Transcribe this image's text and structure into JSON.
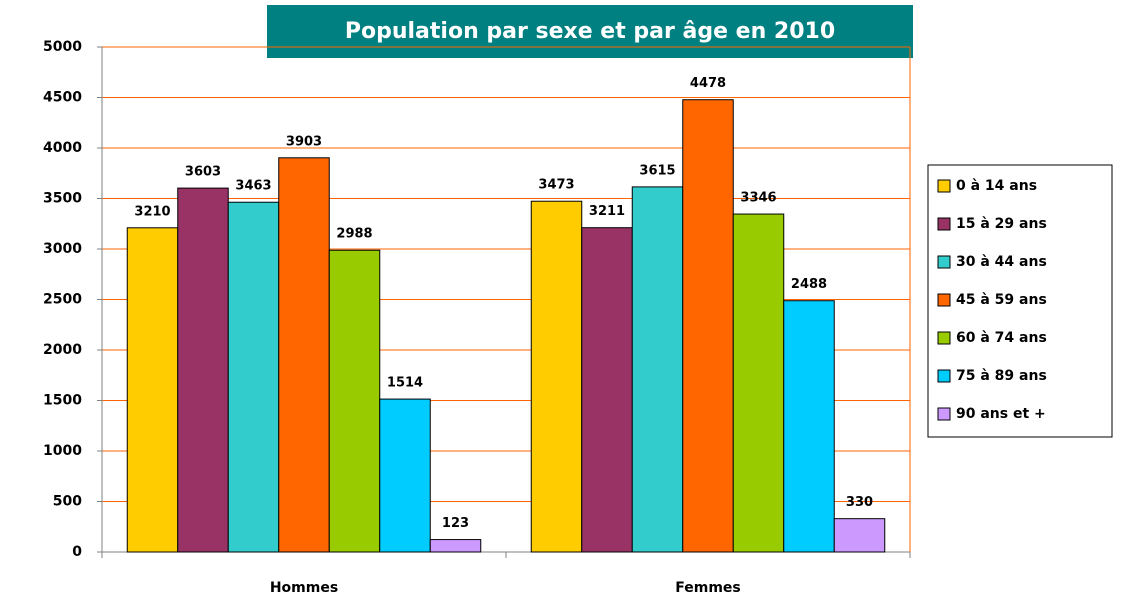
{
  "chart_data": {
    "type": "bar",
    "title": "Population par sexe et par âge en 2010",
    "categories": [
      "Hommes",
      "Femmes"
    ],
    "series": [
      {
        "name": "0 à 14 ans",
        "color": "#ffcc00",
        "values": [
          3210,
          3473
        ]
      },
      {
        "name": "15 à 29 ans",
        "color": "#993366",
        "values": [
          3603,
          3211
        ]
      },
      {
        "name": "30 à 44 ans",
        "color": "#33cccc",
        "values": [
          3463,
          3615
        ]
      },
      {
        "name": "45 à 59 ans",
        "color": "#ff6600",
        "values": [
          3903,
          4478
        ]
      },
      {
        "name": "60 à 74 ans",
        "color": "#99cc00",
        "values": [
          2988,
          3346
        ]
      },
      {
        "name": "75 à 89 ans",
        "color": "#00ccff",
        "values": [
          1514,
          2488
        ]
      },
      {
        "name": "90 ans et +",
        "color": "#cc99ff",
        "values": [
          123,
          330
        ]
      }
    ],
    "ylim": [
      0,
      5000
    ],
    "yticks": [
      0,
      500,
      1000,
      1500,
      2000,
      2500,
      3000,
      3500,
      4000,
      4500,
      5000
    ],
    "grid": true,
    "grid_color": "#ff6600",
    "legend": "right"
  }
}
